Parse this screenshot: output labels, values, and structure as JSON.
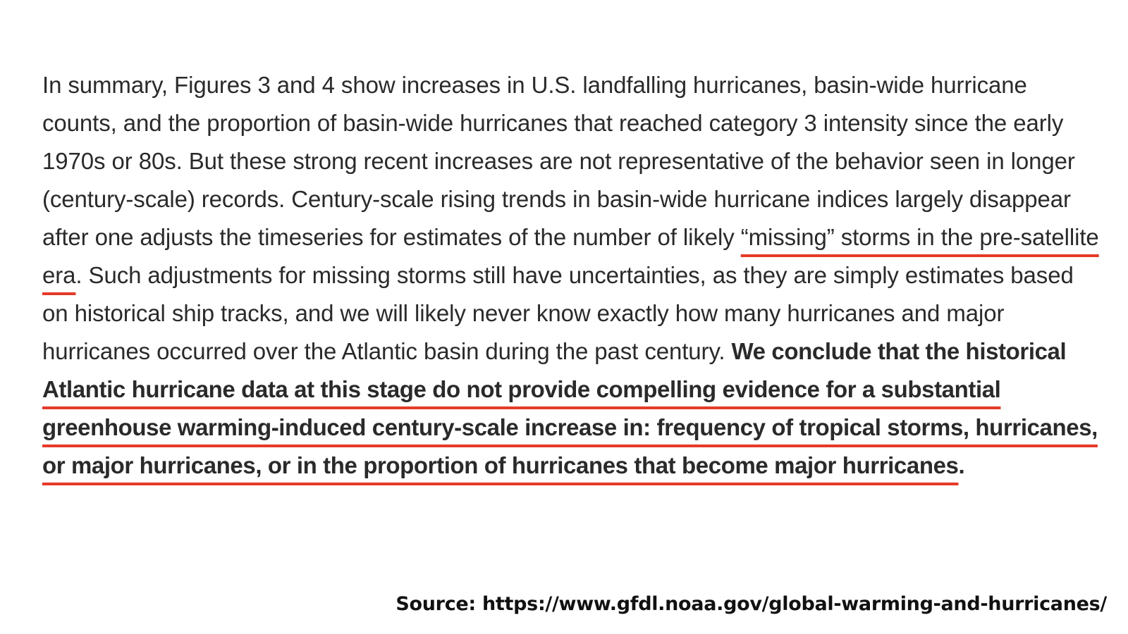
{
  "excerpt": {
    "intro": "In summary, Figures 3 and 4 show increases in U.S. landfalling hurricanes, basin-wide hurricane counts, and the proportion of basin-wide hurricanes that reached category 3 intensity since the early 1970s or 80s.  But these strong recent increases are not representative of the behavior seen in longer (century-scale) records. Century-scale rising trends in basin-wide hurricane indices largely disappear after one adjusts the timeseries for estimates of the number of likely ",
    "highlight_missing": "“missing” storms in the pre-satellite era",
    "middle": ".  Such adjustments for missing storms still have uncertainties, as they are simply estimates based on historical ship tracks, and we will likely never know exactly how many hurricanes and major hurricanes occurred over the Atlantic basin during the past century.  ",
    "conclusion_lead": "We conclude that the historical ",
    "conclusion_underlined": "Atlantic hurricane data at this stage do not provide compelling evidence for a substantial greenhouse warming-induced century-scale increase in:  frequency of tropical storms, hurricanes, or major hurricanes, or in the proportion of hurricanes that become major hurricanes",
    "conclusion_end": "."
  },
  "source": "Source: https://www.gfdl.noaa.gov/global-warming-and-hurricanes/",
  "colors": {
    "underline": "#e53a27",
    "body_text": "#2a2a2a"
  }
}
